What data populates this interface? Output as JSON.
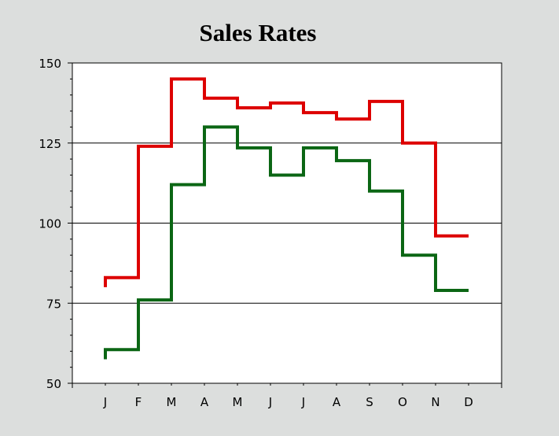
{
  "chart_data": {
    "type": "line",
    "step": true,
    "title": "Sales Rates",
    "xlabel": "",
    "ylabel": "",
    "categories": [
      "J",
      "F",
      "M",
      "A",
      "M",
      "J",
      "J",
      "A",
      "S",
      "O",
      "N",
      "D"
    ],
    "ylim": [
      50,
      150
    ],
    "yticks": [
      50,
      75,
      100,
      125,
      150
    ],
    "grid": "horizontal",
    "series": [
      {
        "color": "#dd0000",
        "start": 80,
        "values": [
          83,
          124,
          145,
          139,
          136,
          137.5,
          134.5,
          132.5,
          138,
          125,
          96,
          96
        ]
      },
      {
        "color": "#0b6614",
        "start": 57.5,
        "values": [
          60.5,
          76,
          112,
          130,
          123.5,
          115,
          123.5,
          119.5,
          110,
          90,
          79,
          79
        ]
      }
    ]
  }
}
